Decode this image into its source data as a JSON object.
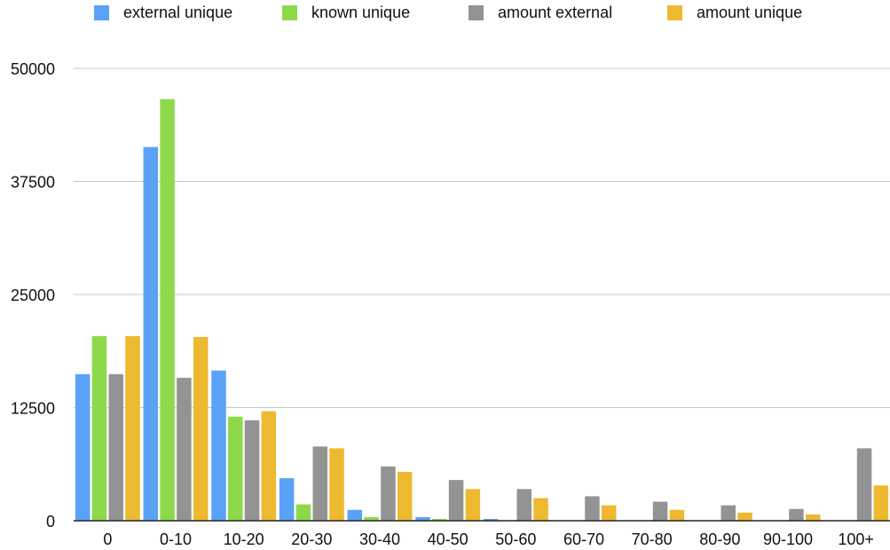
{
  "chart_data": {
    "type": "bar",
    "title": "",
    "xlabel": "",
    "ylabel": "",
    "ylim": [
      0,
      50000
    ],
    "yticks": [
      0,
      12500,
      25000,
      37500,
      50000
    ],
    "ytick_labels": [
      "0",
      "12500",
      "25000",
      "37500",
      "50000"
    ],
    "grid": true,
    "legend_position": "top",
    "categories": [
      "0",
      "0-10",
      "10-20",
      "20-30",
      "30-40",
      "40-50",
      "50-60",
      "60-70",
      "70-80",
      "80-90",
      "90-100",
      "100+"
    ],
    "series": [
      {
        "name": "external unique",
        "color": "#5aa2f7",
        "values": [
          16200,
          41300,
          16600,
          4700,
          1200,
          400,
          200,
          0,
          0,
          0,
          0,
          0
        ]
      },
      {
        "name": "known unique",
        "color": "#8ed94a",
        "values": [
          20400,
          46600,
          11500,
          1800,
          400,
          200,
          0,
          0,
          0,
          0,
          0,
          0
        ]
      },
      {
        "name": "amount external",
        "color": "#939393",
        "values": [
          16200,
          15800,
          11100,
          8200,
          6000,
          4500,
          3500,
          2700,
          2100,
          1700,
          1300,
          8000
        ]
      },
      {
        "name": "amount unique",
        "color": "#ecb930",
        "values": [
          20400,
          20300,
          12100,
          8000,
          5400,
          3500,
          2500,
          1700,
          1200,
          900,
          700,
          3900
        ]
      }
    ]
  }
}
